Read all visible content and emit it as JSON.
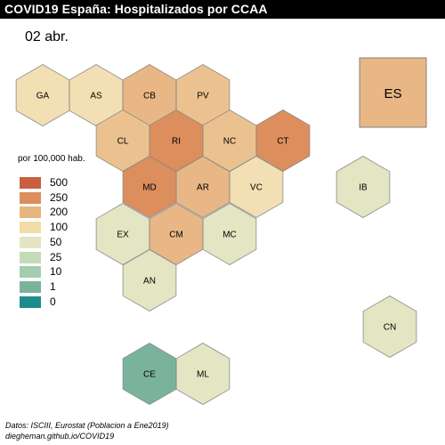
{
  "header": {
    "title": "COVID19 España: Hospitalizados por CCAA",
    "date": "02 abr."
  },
  "legend": {
    "title": "por 100,000 hab.",
    "bins": [
      {
        "label": "500",
        "color": "#c8603d"
      },
      {
        "label": "250",
        "color": "#dc8e5c"
      },
      {
        "label": "200",
        "color": "#e8b47e"
      },
      {
        "label": "100",
        "color": "#f2dca8"
      },
      {
        "label": "50",
        "color": "#e3e5c3"
      },
      {
        "label": "25",
        "color": "#c4dbb7"
      },
      {
        "label": "10",
        "color": "#a3cdae"
      },
      {
        "label": "1",
        "color": "#7ab39b"
      },
      {
        "label": "0",
        "color": "#1f8c8c"
      }
    ]
  },
  "regions": [
    {
      "code": "GA",
      "color": "#f2dfb3"
    },
    {
      "code": "AS",
      "color": "#f2dfb3"
    },
    {
      "code": "CB",
      "color": "#e8b785"
    },
    {
      "code": "PV",
      "color": "#ebc28f"
    },
    {
      "code": "CL",
      "color": "#ebc28f"
    },
    {
      "code": "RI",
      "color": "#dc8e5c"
    },
    {
      "code": "NC",
      "color": "#ebc28f"
    },
    {
      "code": "CT",
      "color": "#dc8e5c"
    },
    {
      "code": "MD",
      "color": "#dc8e5c"
    },
    {
      "code": "AR",
      "color": "#e8b785"
    },
    {
      "code": "VC",
      "color": "#f2dfb3"
    },
    {
      "code": "EX",
      "color": "#e3e5c3"
    },
    {
      "code": "CM",
      "color": "#e8b785"
    },
    {
      "code": "MC",
      "color": "#e3e5c3"
    },
    {
      "code": "AN",
      "color": "#e3e5c3"
    },
    {
      "code": "IB",
      "color": "#e3e5c3"
    },
    {
      "code": "CN",
      "color": "#e3e5c3"
    },
    {
      "code": "CE",
      "color": "#7ab39b"
    },
    {
      "code": "ML",
      "color": "#e3e5c3"
    }
  ],
  "spain": {
    "code": "ES",
    "color": "#e8b785"
  },
  "source": {
    "line1": "Datos: ISCIII, Eurostat (Poblacion a Ene2019)",
    "line2": "diegheman.github.io/COVID19"
  }
}
